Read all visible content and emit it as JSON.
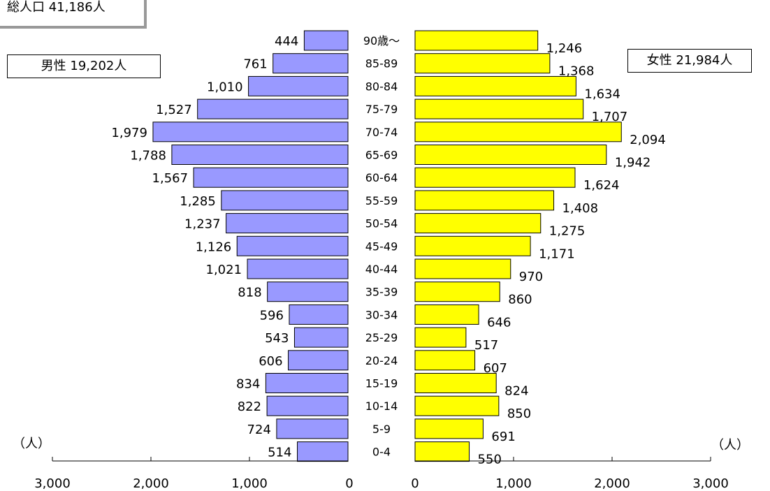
{
  "header": {
    "total": "総人口 41,186人",
    "male": "男性 19,202人",
    "female": "女性 21,984人",
    "unit_left": "（人）",
    "unit_right": "（人）"
  },
  "chart_data": {
    "type": "bar",
    "orientation": "horizontal",
    "subtype": "population-pyramid",
    "categories": [
      "90歳～",
      "85-89",
      "80-84",
      "75-79",
      "70-74",
      "65-69",
      "60-64",
      "55-59",
      "50-54",
      "45-49",
      "40-44",
      "35-39",
      "30-34",
      "25-29",
      "20-24",
      "15-19",
      "10-14",
      "5-9",
      "0-4"
    ],
    "series": [
      {
        "name": "男性",
        "values": [
          444,
          761,
          1010,
          1527,
          1979,
          1788,
          1567,
          1285,
          1237,
          1126,
          1021,
          818,
          596,
          543,
          606,
          834,
          822,
          724,
          514
        ],
        "labels": [
          "444",
          "761",
          "1,010",
          "1,527",
          "1,979",
          "1,788",
          "1,567",
          "1,285",
          "1,237",
          "1,126",
          "1,021",
          "818",
          "596",
          "543",
          "606",
          "834",
          "822",
          "724",
          "514"
        ],
        "color": "#9999ff"
      },
      {
        "name": "女性",
        "values": [
          1246,
          1368,
          1634,
          1707,
          2094,
          1942,
          1624,
          1408,
          1275,
          1171,
          970,
          860,
          646,
          517,
          607,
          824,
          850,
          691,
          550
        ],
        "labels": [
          "1,246",
          "1,368",
          "1,634",
          "1,707",
          "2,094",
          "1,942",
          "1,624",
          "1,408",
          "1,275",
          "1,171",
          "970",
          "860",
          "646",
          "517",
          "607",
          "824",
          "850",
          "691",
          "550"
        ],
        "color": "#ffff00"
      }
    ],
    "xlim": [
      0,
      3000
    ],
    "ticks": [
      0,
      1000,
      2000,
      3000
    ],
    "tick_labels": [
      "0",
      "1,000",
      "2,000",
      "3,000"
    ],
    "grid": false,
    "bar_outline": "#000000"
  }
}
